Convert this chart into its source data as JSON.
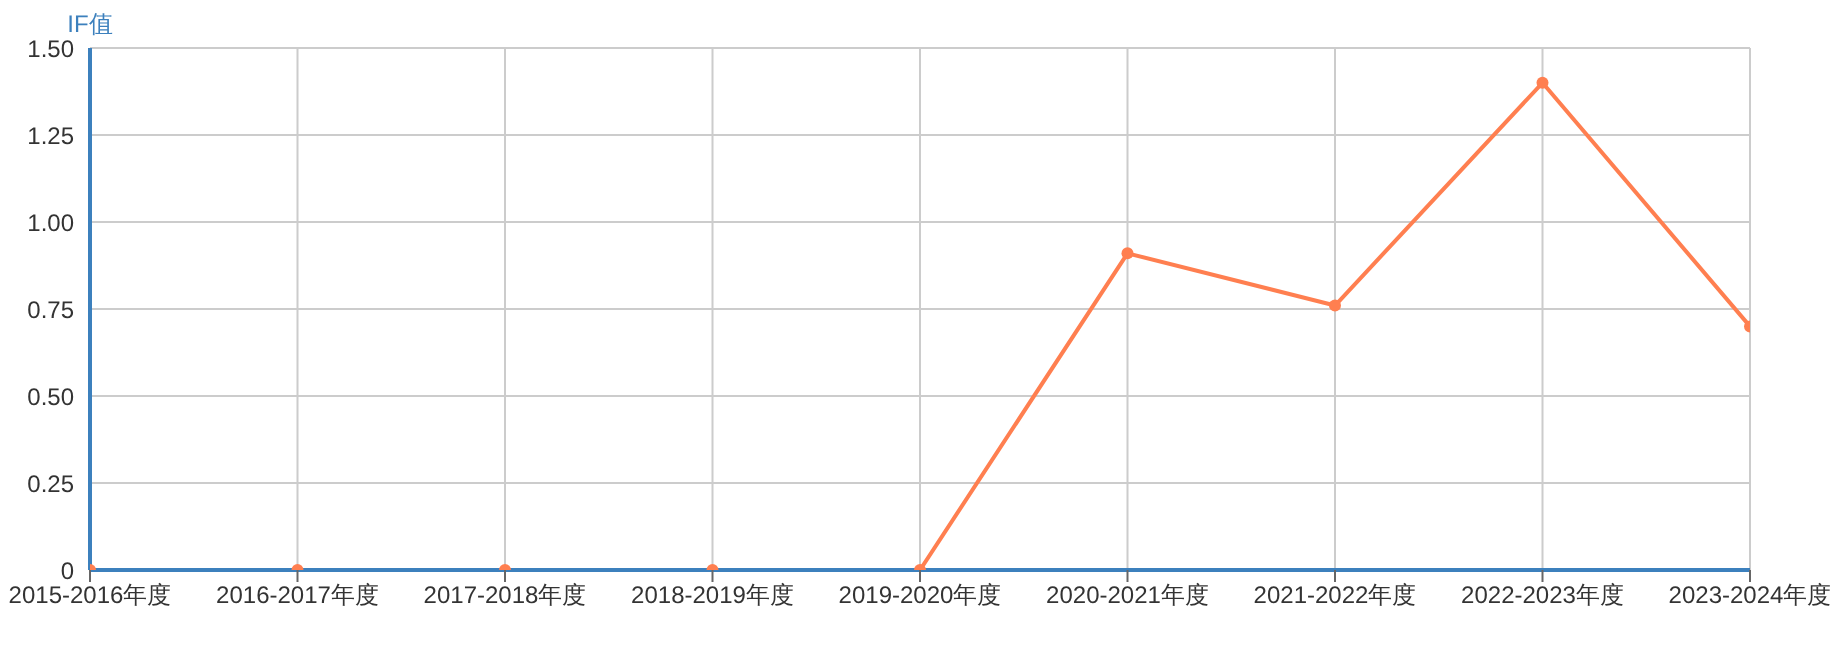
{
  "chart_data": {
    "type": "line",
    "ylabel": "IF值",
    "categories": [
      "2015-2016年度",
      "2016-2017年度",
      "2017-2018年度",
      "2018-2019年度",
      "2019-2020年度",
      "2020-2021年度",
      "2021-2022年度",
      "2022-2023年度",
      "2023-2024年度"
    ],
    "series": [
      {
        "color": "#ff7f50",
        "values": [
          0,
          0,
          0,
          0,
          0,
          0.91,
          0.76,
          1.4,
          0.7
        ]
      }
    ],
    "ylim": [
      0,
      1.5
    ],
    "yticks": [
      0,
      0.25,
      {
        "value": 0.5,
        "label": "0.50"
      },
      0.75,
      {
        "value": 1,
        "label": "1.00"
      },
      1.25,
      {
        "value": 1.5,
        "label": "1.50"
      }
    ],
    "grid": true,
    "legend": false,
    "marker": "circle",
    "line_style": "solid"
  }
}
